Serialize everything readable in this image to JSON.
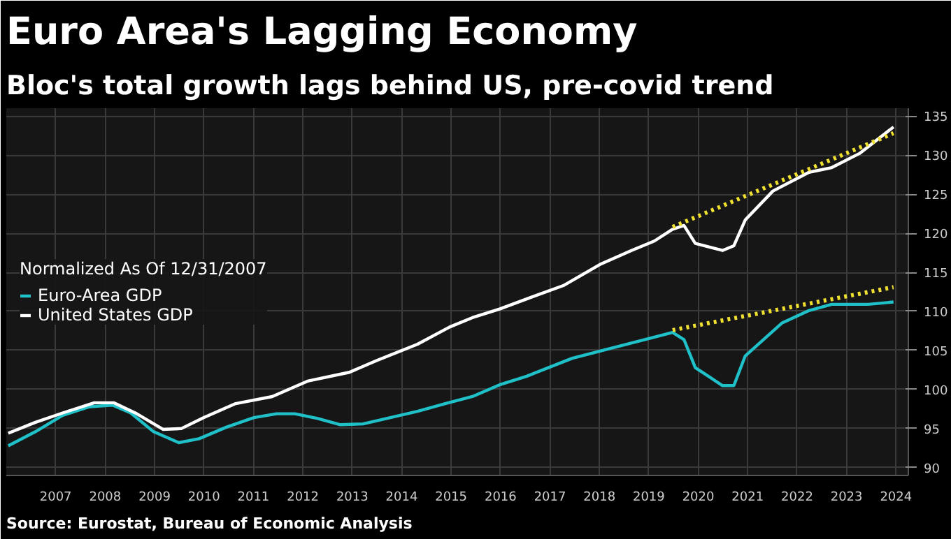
{
  "chart_data": {
    "type": "line",
    "title": "Euro Area's Lagging Economy",
    "subtitle": "Bloc's total growth lags behind US, pre-covid trend",
    "legend_title": "Normalized As Of 12/31/2007",
    "annotations": [
      "Source: Eurostat, Bureau of Economic Analysis"
    ],
    "xlim": [
      2006.5,
      2024.75
    ],
    "xticks": [
      {
        "value": 2007.5,
        "label": "2007"
      },
      {
        "value": 2008.5,
        "label": "2008"
      },
      {
        "value": 2009.5,
        "label": "2009"
      },
      {
        "value": 2010.5,
        "label": "2010"
      },
      {
        "value": 2011.5,
        "label": "2011"
      },
      {
        "value": 2012.5,
        "label": "2012"
      },
      {
        "value": 2013.5,
        "label": "2013"
      },
      {
        "value": 2014.5,
        "label": "2014"
      },
      {
        "value": 2015.5,
        "label": "2015"
      },
      {
        "value": 2016.5,
        "label": "2016"
      },
      {
        "value": 2017.5,
        "label": "2017"
      },
      {
        "value": 2018.5,
        "label": "2018"
      },
      {
        "value": 2019.5,
        "label": "2019"
      },
      {
        "value": 2020.5,
        "label": "2020"
      },
      {
        "value": 2021.5,
        "label": "2021"
      },
      {
        "value": 2022.5,
        "label": "2022"
      },
      {
        "value": 2023.5,
        "label": "2023"
      },
      {
        "value": 2024.5,
        "label": "2024"
      }
    ],
    "ylim": [
      89,
      136
    ],
    "yticks": [
      90,
      95,
      100,
      105,
      110,
      115,
      120,
      125,
      130,
      135
    ],
    "grid": true,
    "legend": "left",
    "marker": "none",
    "line_style": "solid",
    "series": [
      {
        "name": "Euro-Area GDP",
        "color": "#20c0c8",
        "x": [
          2006.54,
          2007.09,
          2007.64,
          2008.19,
          2008.65,
          2009.02,
          2009.48,
          2009.99,
          2010.4,
          2010.96,
          2011.51,
          2011.97,
          2012.34,
          2012.8,
          2013.26,
          2013.72,
          2014.27,
          2014.82,
          2015.38,
          2015.93,
          2016.48,
          2017.03,
          2017.95,
          2018.69,
          2019.42,
          2019.98,
          2020.21,
          2020.44,
          2020.99,
          2021.22,
          2021.45,
          2022.19,
          2022.74,
          2023.2,
          2023.94,
          2024.45
        ],
        "values": [
          92.8,
          94.6,
          96.7,
          97.8,
          98.0,
          97.0,
          94.6,
          93.2,
          93.7,
          95.2,
          96.4,
          96.9,
          96.9,
          96.3,
          95.5,
          95.6,
          96.4,
          97.2,
          98.2,
          99.1,
          100.6,
          101.7,
          104.0,
          105.2,
          106.4,
          107.3,
          106.4,
          102.8,
          100.5,
          100.5,
          104.3,
          108.5,
          110.1,
          110.9,
          110.9,
          111.2
        ]
      },
      {
        "name": "United States GDP",
        "color": "#ffffff",
        "x": [
          2006.54,
          2007.09,
          2007.64,
          2008.28,
          2008.68,
          2009.11,
          2009.67,
          2010.04,
          2010.49,
          2011.14,
          2011.88,
          2012.61,
          2013.44,
          2013.99,
          2014.82,
          2015.47,
          2015.93,
          2016.48,
          2017.03,
          2017.77,
          2018.51,
          2019.15,
          2019.61,
          2019.98,
          2020.21,
          2020.44,
          2020.99,
          2021.22,
          2021.45,
          2022.01,
          2022.74,
          2023.2,
          2023.76,
          2024.45
        ],
        "values": [
          94.4,
          95.8,
          97.0,
          98.3,
          98.3,
          97.0,
          94.9,
          95.0,
          96.4,
          98.2,
          99.1,
          101.1,
          102.2,
          103.7,
          105.8,
          108.0,
          109.2,
          110.3,
          111.6,
          113.3,
          116.0,
          117.8,
          119.0,
          120.5,
          121.0,
          118.7,
          117.8,
          118.4,
          121.7,
          125.4,
          127.8,
          128.4,
          130.2,
          133.6
        ]
      },
      {
        "type": "line",
        "line_style": "dotted",
        "color": "#f0e030",
        "x": [
          2019.98,
          2024.45
        ],
        "values": [
          120.8,
          132.8
        ]
      },
      {
        "type": "line",
        "line_style": "dotted",
        "color": "#f0e030",
        "x": [
          2019.98,
          2024.45
        ],
        "values": [
          107.6,
          113.1
        ]
      }
    ]
  }
}
